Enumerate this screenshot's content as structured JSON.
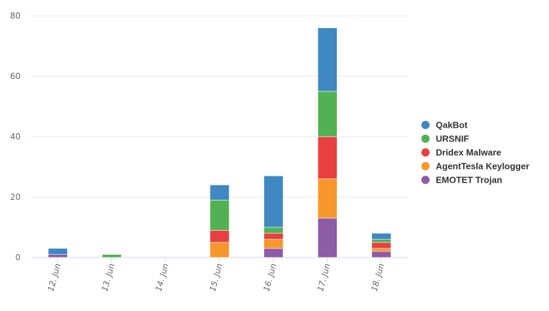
{
  "chart_data": {
    "type": "bar",
    "stacked": true,
    "categories": [
      "12. Jun",
      "13. Jun",
      "14. Jun",
      "15. Jun",
      "16. Jun",
      "17. Jun",
      "18. Jun"
    ],
    "series": [
      {
        "name": "EMOTET Trojan",
        "color": "#8e5ba7",
        "values": [
          1,
          0,
          0,
          0,
          3,
          13,
          2
        ]
      },
      {
        "name": "AgentTesla Keylogger",
        "color": "#f7972c",
        "values": [
          0,
          0,
          0,
          5,
          3,
          13,
          1
        ]
      },
      {
        "name": "Dridex Malware",
        "color": "#e84040",
        "values": [
          0,
          0,
          0,
          4,
          2,
          14,
          2
        ]
      },
      {
        "name": "URSNIF",
        "color": "#52b152",
        "values": [
          0,
          1,
          0,
          10,
          2,
          15,
          1
        ]
      },
      {
        "name": "QakBot",
        "color": "#3f88c2",
        "values": [
          2,
          0,
          0,
          5,
          17,
          21,
          2
        ]
      }
    ],
    "legend_order": [
      "QakBot",
      "URSNIF",
      "Dridex Malware",
      "AgentTesla Keylogger",
      "EMOTET Trojan"
    ],
    "yticks": [
      "0",
      "20",
      "40",
      "60",
      "80"
    ],
    "ylim": [
      0,
      80
    ],
    "grid": true,
    "legend_position": "right",
    "title": "",
    "xlabel": "",
    "ylabel": ""
  }
}
